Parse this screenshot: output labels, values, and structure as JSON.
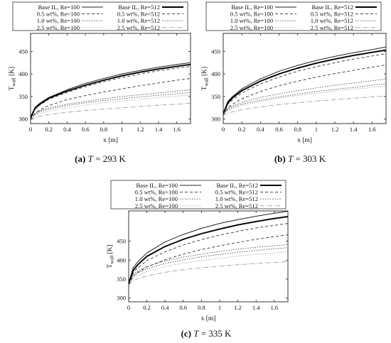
{
  "legend_labels": [
    "Base IL, Re=100",
    "Base IL, Re=512",
    "0.5 wt%, Re=100",
    "0.5 wt%, Re=512",
    "1.0 wt%, Re=100",
    "1.0 wt%, Re=512",
    "2.5 wt%, Re=100",
    "2.5 wt%, Re=512"
  ],
  "chart_data": [
    {
      "type": "line",
      "caption_letter": "(a)",
      "caption_var": "T",
      "caption_value": " = 293 K",
      "xlabel": "x [m]",
      "ylabel": "T",
      "ylabel_sub": "wall",
      "ylabel_unit": " [K]",
      "xlim": [
        0,
        1.75
      ],
      "ylim": [
        290,
        490
      ],
      "xticks": [
        0,
        0.2,
        0.4,
        0.6,
        0.8,
        1,
        1.2,
        1.4,
        1.6
      ],
      "yticks": [
        300,
        350,
        400,
        450
      ],
      "x": [
        0,
        0.05,
        0.1,
        0.2,
        0.4,
        0.6,
        0.8,
        1.0,
        1.2,
        1.4,
        1.6,
        1.75
      ],
      "series": [
        {
          "name": "Base IL, Re=100",
          "values": [
            305,
            326,
            335,
            348,
            365,
            379,
            390,
            400,
            408,
            415,
            421,
            425
          ]
        },
        {
          "name": "0.5 wt%, Re=100",
          "values": [
            303,
            324,
            333,
            346,
            362,
            375,
            386,
            396,
            404,
            411,
            417,
            421
          ]
        },
        {
          "name": "1.0 wt%, Re=100",
          "values": [
            301,
            322,
            331,
            344,
            359,
            372,
            383,
            392,
            400,
            407,
            413,
            417
          ]
        },
        {
          "name": "2.5 wt%, Re=100",
          "values": [
            299,
            313,
            320,
            330,
            343,
            352,
            360,
            367,
            374,
            380,
            386,
            390
          ]
        },
        {
          "name": "Base IL, Re=512",
          "values": [
            305,
            313,
            318,
            325,
            333,
            339,
            345,
            350,
            354,
            358,
            362,
            365
          ]
        },
        {
          "name": "0.5 wt%, Re=512",
          "values": [
            303,
            311,
            316,
            322,
            330,
            336,
            341,
            345,
            349,
            353,
            356,
            359
          ]
        },
        {
          "name": "1.0 wt%, Re=512",
          "values": [
            301,
            308,
            312,
            318,
            325,
            331,
            336,
            340,
            344,
            348,
            351,
            353
          ]
        },
        {
          "name": "2.5 wt%, Re=512",
          "values": [
            299,
            303,
            306,
            310,
            315,
            319,
            322,
            325,
            328,
            331,
            333,
            335
          ]
        }
      ]
    },
    {
      "type": "line",
      "caption_letter": "(b)",
      "caption_var": "T",
      "caption_value": " = 303 K",
      "xlabel": "x [m]",
      "ylabel": "T",
      "ylabel_sub": "wall",
      "ylabel_unit": " [K]",
      "xlim": [
        0,
        1.75
      ],
      "ylim": [
        290,
        490
      ],
      "xticks": [
        0,
        0.2,
        0.4,
        0.6,
        0.8,
        1,
        1.2,
        1.4,
        1.6
      ],
      "yticks": [
        300,
        350,
        400,
        450
      ],
      "x": [
        0,
        0.05,
        0.1,
        0.2,
        0.4,
        0.6,
        0.8,
        1.0,
        1.2,
        1.4,
        1.6,
        1.75
      ],
      "series": [
        {
          "name": "Base IL, Re=100",
          "values": [
            313,
            339,
            350,
            367,
            389,
            406,
            419,
            430,
            439,
            447,
            454,
            460
          ]
        },
        {
          "name": "0.5 wt%, Re=100",
          "values": [
            312,
            336,
            347,
            363,
            384,
            400,
            413,
            424,
            433,
            441,
            448,
            453
          ]
        },
        {
          "name": "1.0 wt%, Re=100",
          "values": [
            311,
            333,
            343,
            358,
            378,
            393,
            406,
            416,
            425,
            433,
            440,
            445
          ]
        },
        {
          "name": "2.5 wt%, Re=100",
          "values": [
            309,
            325,
            333,
            345,
            361,
            374,
            384,
            393,
            401,
            408,
            415,
            420
          ]
        },
        {
          "name": "Base IL, Re=512",
          "values": [
            313,
            324,
            329,
            337,
            348,
            356,
            363,
            369,
            375,
            380,
            385,
            389
          ]
        },
        {
          "name": "0.5 wt%, Re=512",
          "values": [
            312,
            321,
            326,
            333,
            342,
            349,
            355,
            361,
            366,
            370,
            375,
            378
          ]
        },
        {
          "name": "1.0 wt%, Re=512",
          "values": [
            311,
            319,
            323,
            330,
            339,
            346,
            352,
            357,
            362,
            366,
            370,
            373
          ]
        },
        {
          "name": "2.5 wt%, Re=512",
          "values": [
            309,
            313,
            316,
            321,
            327,
            332,
            336,
            340,
            343,
            346,
            349,
            351
          ]
        }
      ]
    },
    {
      "type": "line",
      "caption_letter": "(c)",
      "caption_var": "T",
      "caption_value": " = 335 K",
      "xlabel": "x [m]",
      "ylabel": "T",
      "ylabel_sub": "wall",
      "ylabel_unit": " [K]",
      "xlim": [
        0,
        1.75
      ],
      "ylim": [
        290,
        530
      ],
      "xticks": [
        0,
        0.2,
        0.4,
        0.6,
        0.8,
        1,
        1.2,
        1.4,
        1.6
      ],
      "yticks": [
        300,
        350,
        400,
        450
      ],
      "x": [
        0,
        0.05,
        0.1,
        0.2,
        0.4,
        0.6,
        0.8,
        1.0,
        1.2,
        1.4,
        1.6,
        1.75
      ],
      "series": [
        {
          "name": "Base IL, Re=100",
          "values": [
            340,
            380,
            396,
            419,
            448,
            468,
            484,
            497,
            507,
            516,
            524,
            529
          ]
        },
        {
          "name": "0.5 wt%, Re=100",
          "values": [
            339,
            373,
            388,
            410,
            436,
            455,
            470,
            482,
            493,
            502,
            510,
            515
          ]
        },
        {
          "name": "1.0 wt%, Re=100",
          "values": [
            337,
            367,
            380,
            399,
            422,
            440,
            454,
            466,
            476,
            485,
            492,
            497
          ]
        },
        {
          "name": "2.5 wt%, Re=100",
          "values": [
            335,
            358,
            368,
            382,
            401,
            416,
            428,
            438,
            447,
            455,
            462,
            467
          ]
        },
        {
          "name": "Base IL, Re=512",
          "values": [
            340,
            363,
            371,
            383,
            398,
            408,
            416,
            423,
            429,
            434,
            438,
            441
          ]
        },
        {
          "name": "0.5 wt%, Re=512",
          "values": [
            339,
            359,
            366,
            377,
            391,
            401,
            409,
            415,
            421,
            426,
            430,
            433
          ]
        },
        {
          "name": "1.0 wt%, Re=512",
          "values": [
            337,
            353,
            360,
            370,
            383,
            392,
            399,
            405,
            411,
            415,
            419,
            422
          ]
        },
        {
          "name": "2.5 wt%, Re=512",
          "values": [
            335,
            346,
            351,
            358,
            368,
            375,
            380,
            384,
            388,
            391,
            394,
            396
          ]
        }
      ]
    }
  ]
}
